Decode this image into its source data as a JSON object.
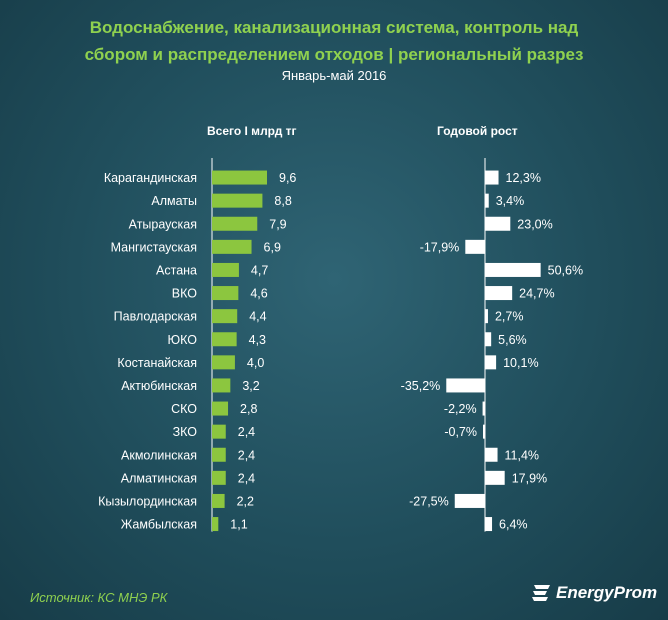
{
  "title_line1": "Водоснабжение, канализационная система, контроль над",
  "title_line2": "сбором и распределением отходов | региональный разрез",
  "subtitle": "Январь-май 2016",
  "source": "Источник: КС МНЭ РК",
  "logo_text": "EnergyProm",
  "colors": {
    "bar_total": "#8cc63f",
    "bar_growth": "#ffffff",
    "title": "#8fd14f"
  },
  "chart_data": [
    {
      "type": "bar",
      "orientation": "horizontal",
      "title": "Всего I млрд тг",
      "categories": [
        "Карагандинская",
        "Алматы",
        "Атырауская",
        "Мангистауская",
        "Астана",
        "ВКО",
        "Павлодарская",
        "ЮКО",
        "Костанайская",
        "Актюбинская",
        "СКО",
        "ЗКО",
        "Акмолинская",
        "Алматинская",
        "Кызылординская",
        "Жамбылская"
      ],
      "values": [
        9.6,
        8.8,
        7.9,
        6.9,
        4.7,
        4.6,
        4.4,
        4.3,
        4.0,
        3.2,
        2.8,
        2.4,
        2.4,
        2.4,
        2.2,
        1.1
      ],
      "value_labels": [
        "9,6",
        "8,8",
        "7,9",
        "6,9",
        "4,7",
        "4,6",
        "4,4",
        "4,3",
        "4,0",
        "3,2",
        "2,8",
        "2,4",
        "2,4",
        "2,4",
        "2,2",
        "1,1"
      ],
      "xlim": [
        0,
        9.6
      ]
    },
    {
      "type": "bar",
      "orientation": "horizontal",
      "title": "Годовой рост",
      "categories": [
        "Карагандинская",
        "Алматы",
        "Атырауская",
        "Мангистауская",
        "Астана",
        "ВКО",
        "Павлодарская",
        "ЮКО",
        "Костанайская",
        "Актюбинская",
        "СКО",
        "ЗКО",
        "Акмолинская",
        "Алматинская",
        "Кызылординская",
        "Жамбылская"
      ],
      "values": [
        12.3,
        3.4,
        23.0,
        -17.9,
        50.6,
        24.7,
        2.7,
        5.6,
        10.1,
        -35.2,
        -2.2,
        -0.7,
        11.4,
        17.9,
        -27.5,
        6.4
      ],
      "value_labels": [
        "12,3%",
        "3,4%",
        "23,0%",
        "-17,9%",
        "50,6%",
        "24,7%",
        "2,7%",
        "5,6%",
        "10,1%",
        "-35,2%",
        "-2,2%",
        "-0,7%",
        "11,4%",
        "17,9%",
        "-27,5%",
        "6,4%"
      ],
      "unit": "%"
    }
  ]
}
